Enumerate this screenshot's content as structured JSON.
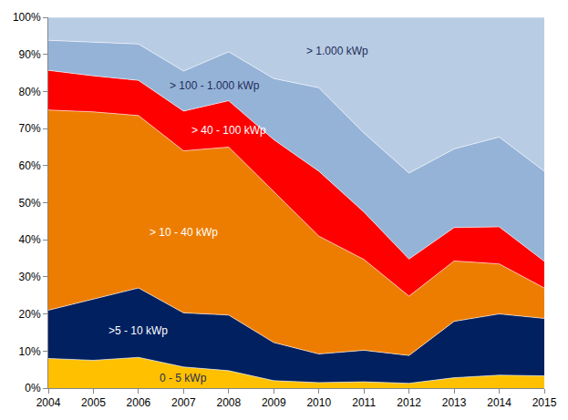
{
  "chart_data": {
    "type": "area",
    "stacked": true,
    "grid": false,
    "x": [
      2004,
      2005,
      2006,
      2007,
      2008,
      2009,
      2010,
      2011,
      2012,
      2013,
      2014,
      2015
    ],
    "xlim": [
      2004,
      2015
    ],
    "xticks": [
      2004,
      2005,
      2006,
      2007,
      2008,
      2009,
      2010,
      2011,
      2012,
      2013,
      2014,
      2015
    ],
    "ylim": [
      0,
      100
    ],
    "yticks": [
      {
        "value": 0,
        "label": "0%"
      },
      {
        "value": 10,
        "label": "10%"
      },
      {
        "value": 20,
        "label": "20%"
      },
      {
        "value": 30,
        "label": "30%"
      },
      {
        "value": 40,
        "label": "40%"
      },
      {
        "value": 50,
        "label": "50%"
      },
      {
        "value": 60,
        "label": "60%"
      },
      {
        "value": 70,
        "label": "70%"
      },
      {
        "value": 80,
        "label": "80%"
      },
      {
        "value": 90,
        "label": "90%"
      },
      {
        "value": 100,
        "label": "100%"
      }
    ],
    "series": [
      {
        "name": "0 - 5 kWp",
        "color": "#FFC000",
        "values": [
          8,
          7.5,
          8.3,
          5.7,
          4.7,
          2,
          1.5,
          1.7,
          1.3,
          2.8,
          3.5,
          3.3
        ]
      },
      {
        "name": ">5 - 10 kWp",
        "color": "#002060",
        "values": [
          13,
          16.5,
          18.7,
          14.6,
          15,
          10.3,
          7.7,
          8.5,
          7.5,
          15.2,
          16.5,
          15.5
        ]
      },
      {
        "name": "> 10 - 40 kWp",
        "color": "#ED7D00",
        "values": [
          54,
          50.5,
          46.5,
          43.7,
          45.3,
          40.7,
          31.8,
          24.5,
          16,
          16.3,
          13.5,
          8.2
        ]
      },
      {
        "name": "> 40 - 100 kWp",
        "color": "#FF0000",
        "values": [
          10.7,
          9.7,
          9.5,
          10.7,
          12.5,
          14,
          17.5,
          12.8,
          10,
          9,
          10,
          7.2
        ]
      },
      {
        "name": "> 100 - 1.000 kWp",
        "color": "#95B3D7",
        "values": [
          8.1,
          9.1,
          9.8,
          10.8,
          13.2,
          16.5,
          22.5,
          21.3,
          23.2,
          21.2,
          24.2,
          24.3
        ]
      },
      {
        "name": "> 1.000 kWp",
        "color": "#B8CCE4",
        "values": [
          6.2,
          6.7,
          7.2,
          14.5,
          9.3,
          16.5,
          19,
          31.2,
          42,
          35.5,
          32.3,
          41.5
        ]
      }
    ]
  }
}
